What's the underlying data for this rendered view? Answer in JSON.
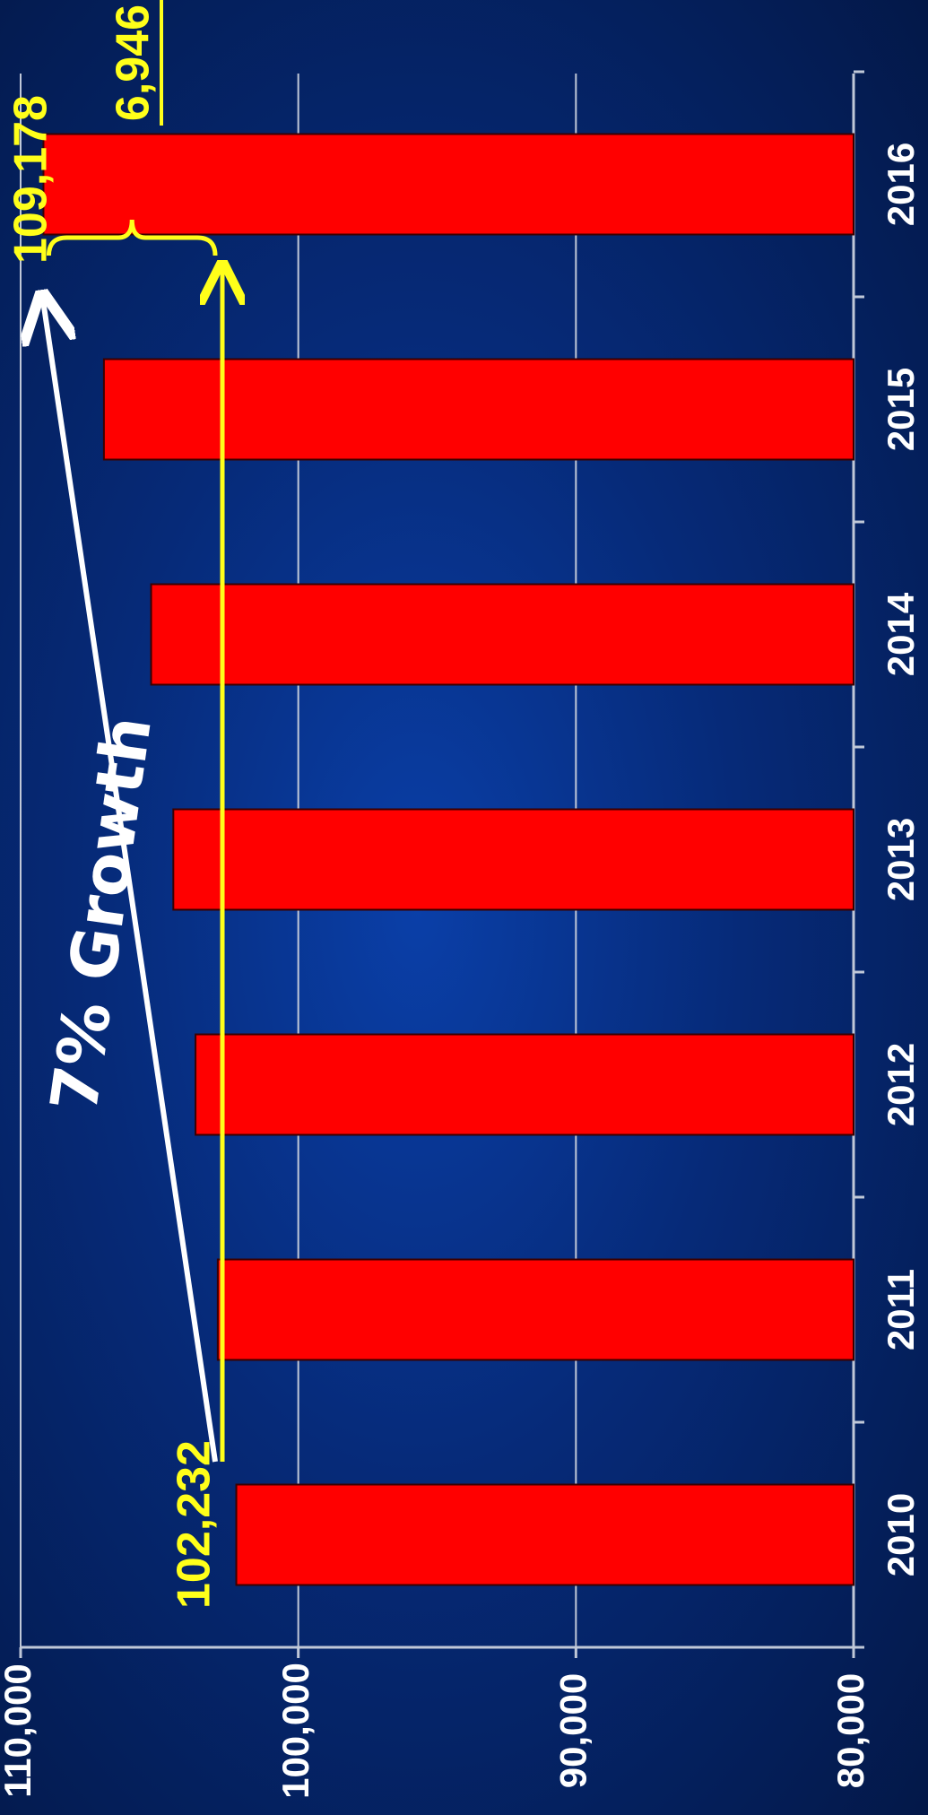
{
  "chart_data": {
    "type": "bar",
    "orientation": "rotated-90-clockwise",
    "categories": [
      "2010",
      "2011",
      "2012",
      "2013",
      "2014",
      "2015",
      "2016"
    ],
    "series": [
      {
        "values": [
          102232,
          102900,
          103700,
          104500,
          105300,
          107000,
          109178
        ]
      }
    ],
    "ylim": [
      80000,
      110000
    ],
    "yticks": [
      "80,000",
      "90,000",
      "100,000",
      "110,000"
    ],
    "ytick_values": [
      80000,
      90000,
      100000,
      110000
    ],
    "grid": true,
    "legend": "none",
    "title": "",
    "xlabel": "",
    "ylabel": "",
    "annotations": {
      "start_value_label": "102,232",
      "end_value_label": "109,178",
      "difference_label": "6,946",
      "growth_label": "7% Growth"
    }
  },
  "colors": {
    "bar_fill": "#ff0000",
    "bar_stroke": "#3a0000",
    "grid": "#c0c8d8",
    "annotation_yellow": "#ffff1a",
    "annotation_white": "#ffffff",
    "background": "#062a78"
  }
}
